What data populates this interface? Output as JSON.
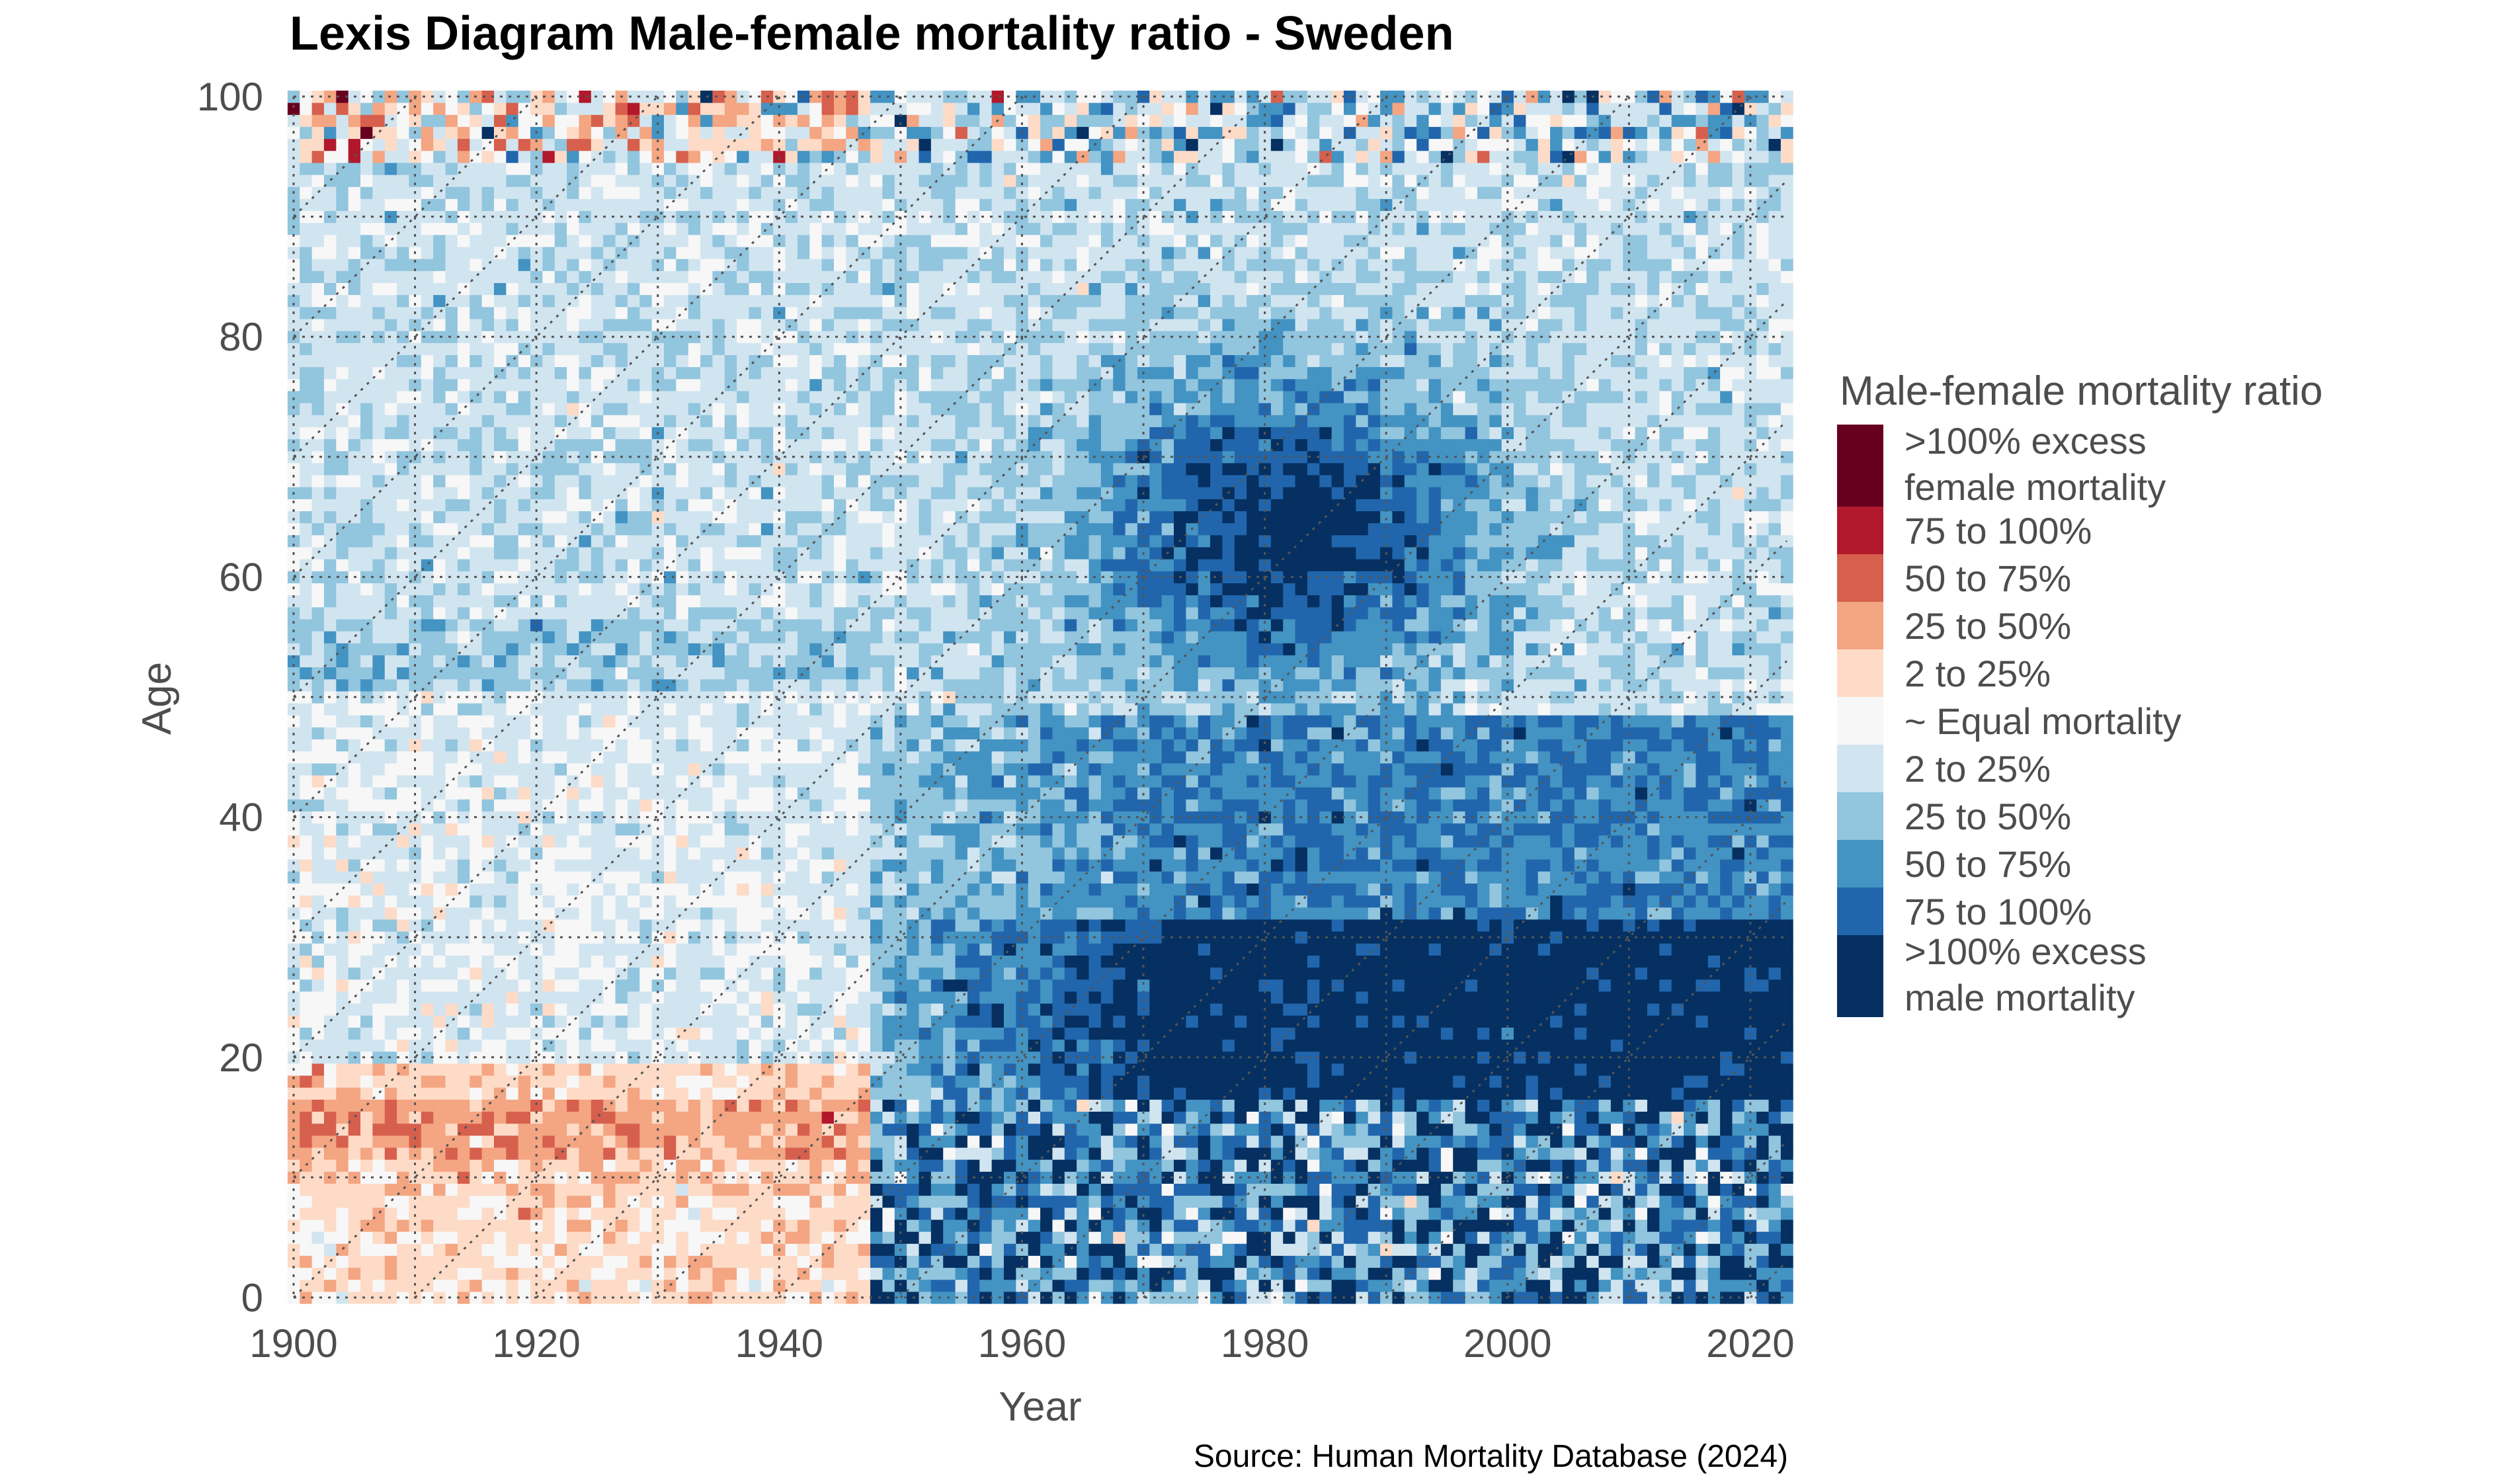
{
  "chart_data": {
    "type": "heatmap",
    "title": "Lexis Diagram Male-female mortality ratio - Sweden",
    "xlabel": "Year",
    "ylabel": "Age",
    "caption": "Source: Human Mortality Database (2024)",
    "xlim": [
      1900,
      2023
    ],
    "ylim": [
      0,
      100
    ],
    "x_ticks": [
      "1900",
      "1920",
      "1940",
      "1960",
      "1980",
      "2000",
      "2020"
    ],
    "y_ticks": [
      "0",
      "20",
      "40",
      "60",
      "80",
      "100"
    ],
    "grid": true,
    "legend_position": "right",
    "legend": {
      "title": "Male-female mortality ratio",
      "categories": [
        {
          "lines": [
            ">100% excess",
            "female mortality"
          ],
          "color": "#67001f"
        },
        {
          "lines": [
            "75 to 100%"
          ],
          "color": "#b2182b"
        },
        {
          "lines": [
            "50 to 75%"
          ],
          "color": "#d6604d"
        },
        {
          "lines": [
            "25 to 50%"
          ],
          "color": "#f4a582"
        },
        {
          "lines": [
            "2 to 25%"
          ],
          "color": "#fddbc7"
        },
        {
          "lines": [
            "~ Equal mortality"
          ],
          "color": "#f7f7f7"
        },
        {
          "lines": [
            "2 to 25%"
          ],
          "color": "#d1e5f0"
        },
        {
          "lines": [
            "25 to 50%"
          ],
          "color": "#92c5de"
        },
        {
          "lines": [
            "50 to 75%"
          ],
          "color": "#4393c3"
        },
        {
          "lines": [
            "75 to 100%"
          ],
          "color": "#2166ac"
        },
        {
          "lines": [
            ">100% excess",
            "male mortality"
          ],
          "color": "#053061"
        }
      ]
    },
    "cell_class_index": "0 = >100% excess female ... 5 = equal ... 10 = >100% excess male (legend order)",
    "region_classes": [
      {
        "years": [
          1900,
          1947
        ],
        "ages": [
          0,
          8
        ],
        "class": 4
      },
      {
        "years": [
          1900,
          1947
        ],
        "ages": [
          9,
          19
        ],
        "class": 4
      },
      {
        "years": [
          1900,
          1947
        ],
        "ages": [
          20,
          50
        ],
        "class": 6
      },
      {
        "years": [
          1900,
          1947
        ],
        "ages": [
          51,
          56
        ],
        "class": 7
      },
      {
        "years": [
          1900,
          1947
        ],
        "ages": [
          57,
          95
        ],
        "class": 6
      },
      {
        "years": [
          1948,
          2023
        ],
        "ages": [
          16,
          30
        ],
        "class": 10
      },
      {
        "years": [
          1970,
          1995
        ],
        "ages": [
          55,
          75
        ],
        "class": 10
      }
    ]
  }
}
